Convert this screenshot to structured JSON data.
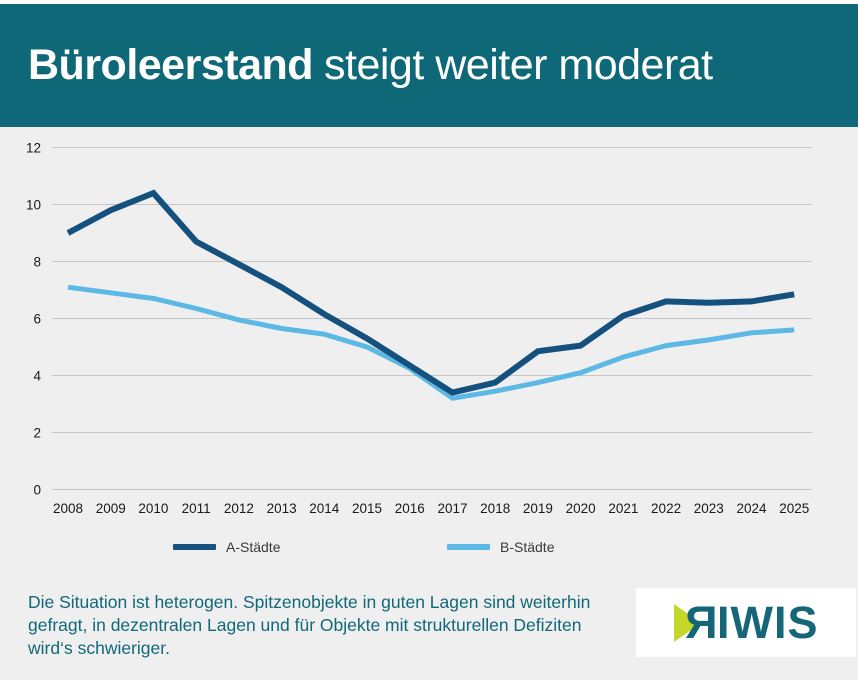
{
  "header": {
    "title_bold": "Büroleerstand",
    "title_rest": "steigt weiter moderat"
  },
  "chart_data": {
    "type": "line",
    "title": "",
    "xlabel": "",
    "ylabel": "",
    "categories": [
      "2008",
      "2009",
      "2010",
      "2011",
      "2012",
      "2013",
      "2014",
      "2015",
      "2016",
      "2017",
      "2018",
      "2019",
      "2020",
      "2021",
      "2022",
      "2023",
      "2024",
      "2025"
    ],
    "series": [
      {
        "name": "A-Städte",
        "color": "#15517e",
        "values": [
          9.0,
          9.8,
          10.4,
          8.7,
          7.9,
          7.1,
          6.15,
          5.3,
          4.35,
          3.4,
          3.75,
          4.85,
          5.05,
          6.1,
          6.6,
          6.55,
          6.6,
          6.85
        ]
      },
      {
        "name": "B-Städte",
        "color": "#5cb8e4",
        "values": [
          7.1,
          6.9,
          6.7,
          6.35,
          5.95,
          5.65,
          5.45,
          5.0,
          4.25,
          3.2,
          3.45,
          3.75,
          4.1,
          4.65,
          5.05,
          5.25,
          5.5,
          5.6
        ]
      }
    ],
    "ylim": [
      0,
      12
    ],
    "ytick_step": 2,
    "grid": true,
    "legend_position": "bottom"
  },
  "annotation": {
    "lines": [
      "Die Situation ist heterogen. Spitzenobjekte in guten Lagen sind weiterhin",
      "gefragt, in dezentralen Lagen und für Objekte mit strukturellen Defiziten",
      "wird‘s schwieriger."
    ]
  },
  "logo": {
    "first_letter": "R",
    "rest": "IWIS"
  },
  "colors": {
    "header_bg": "#0e6878",
    "section_bg": "#efefef",
    "grid": "#c6c6c6",
    "axis_text": "#1a1a1a",
    "annotation_text": "#116879",
    "logo_teal": "#156676",
    "logo_lime": "#c5d62b"
  }
}
